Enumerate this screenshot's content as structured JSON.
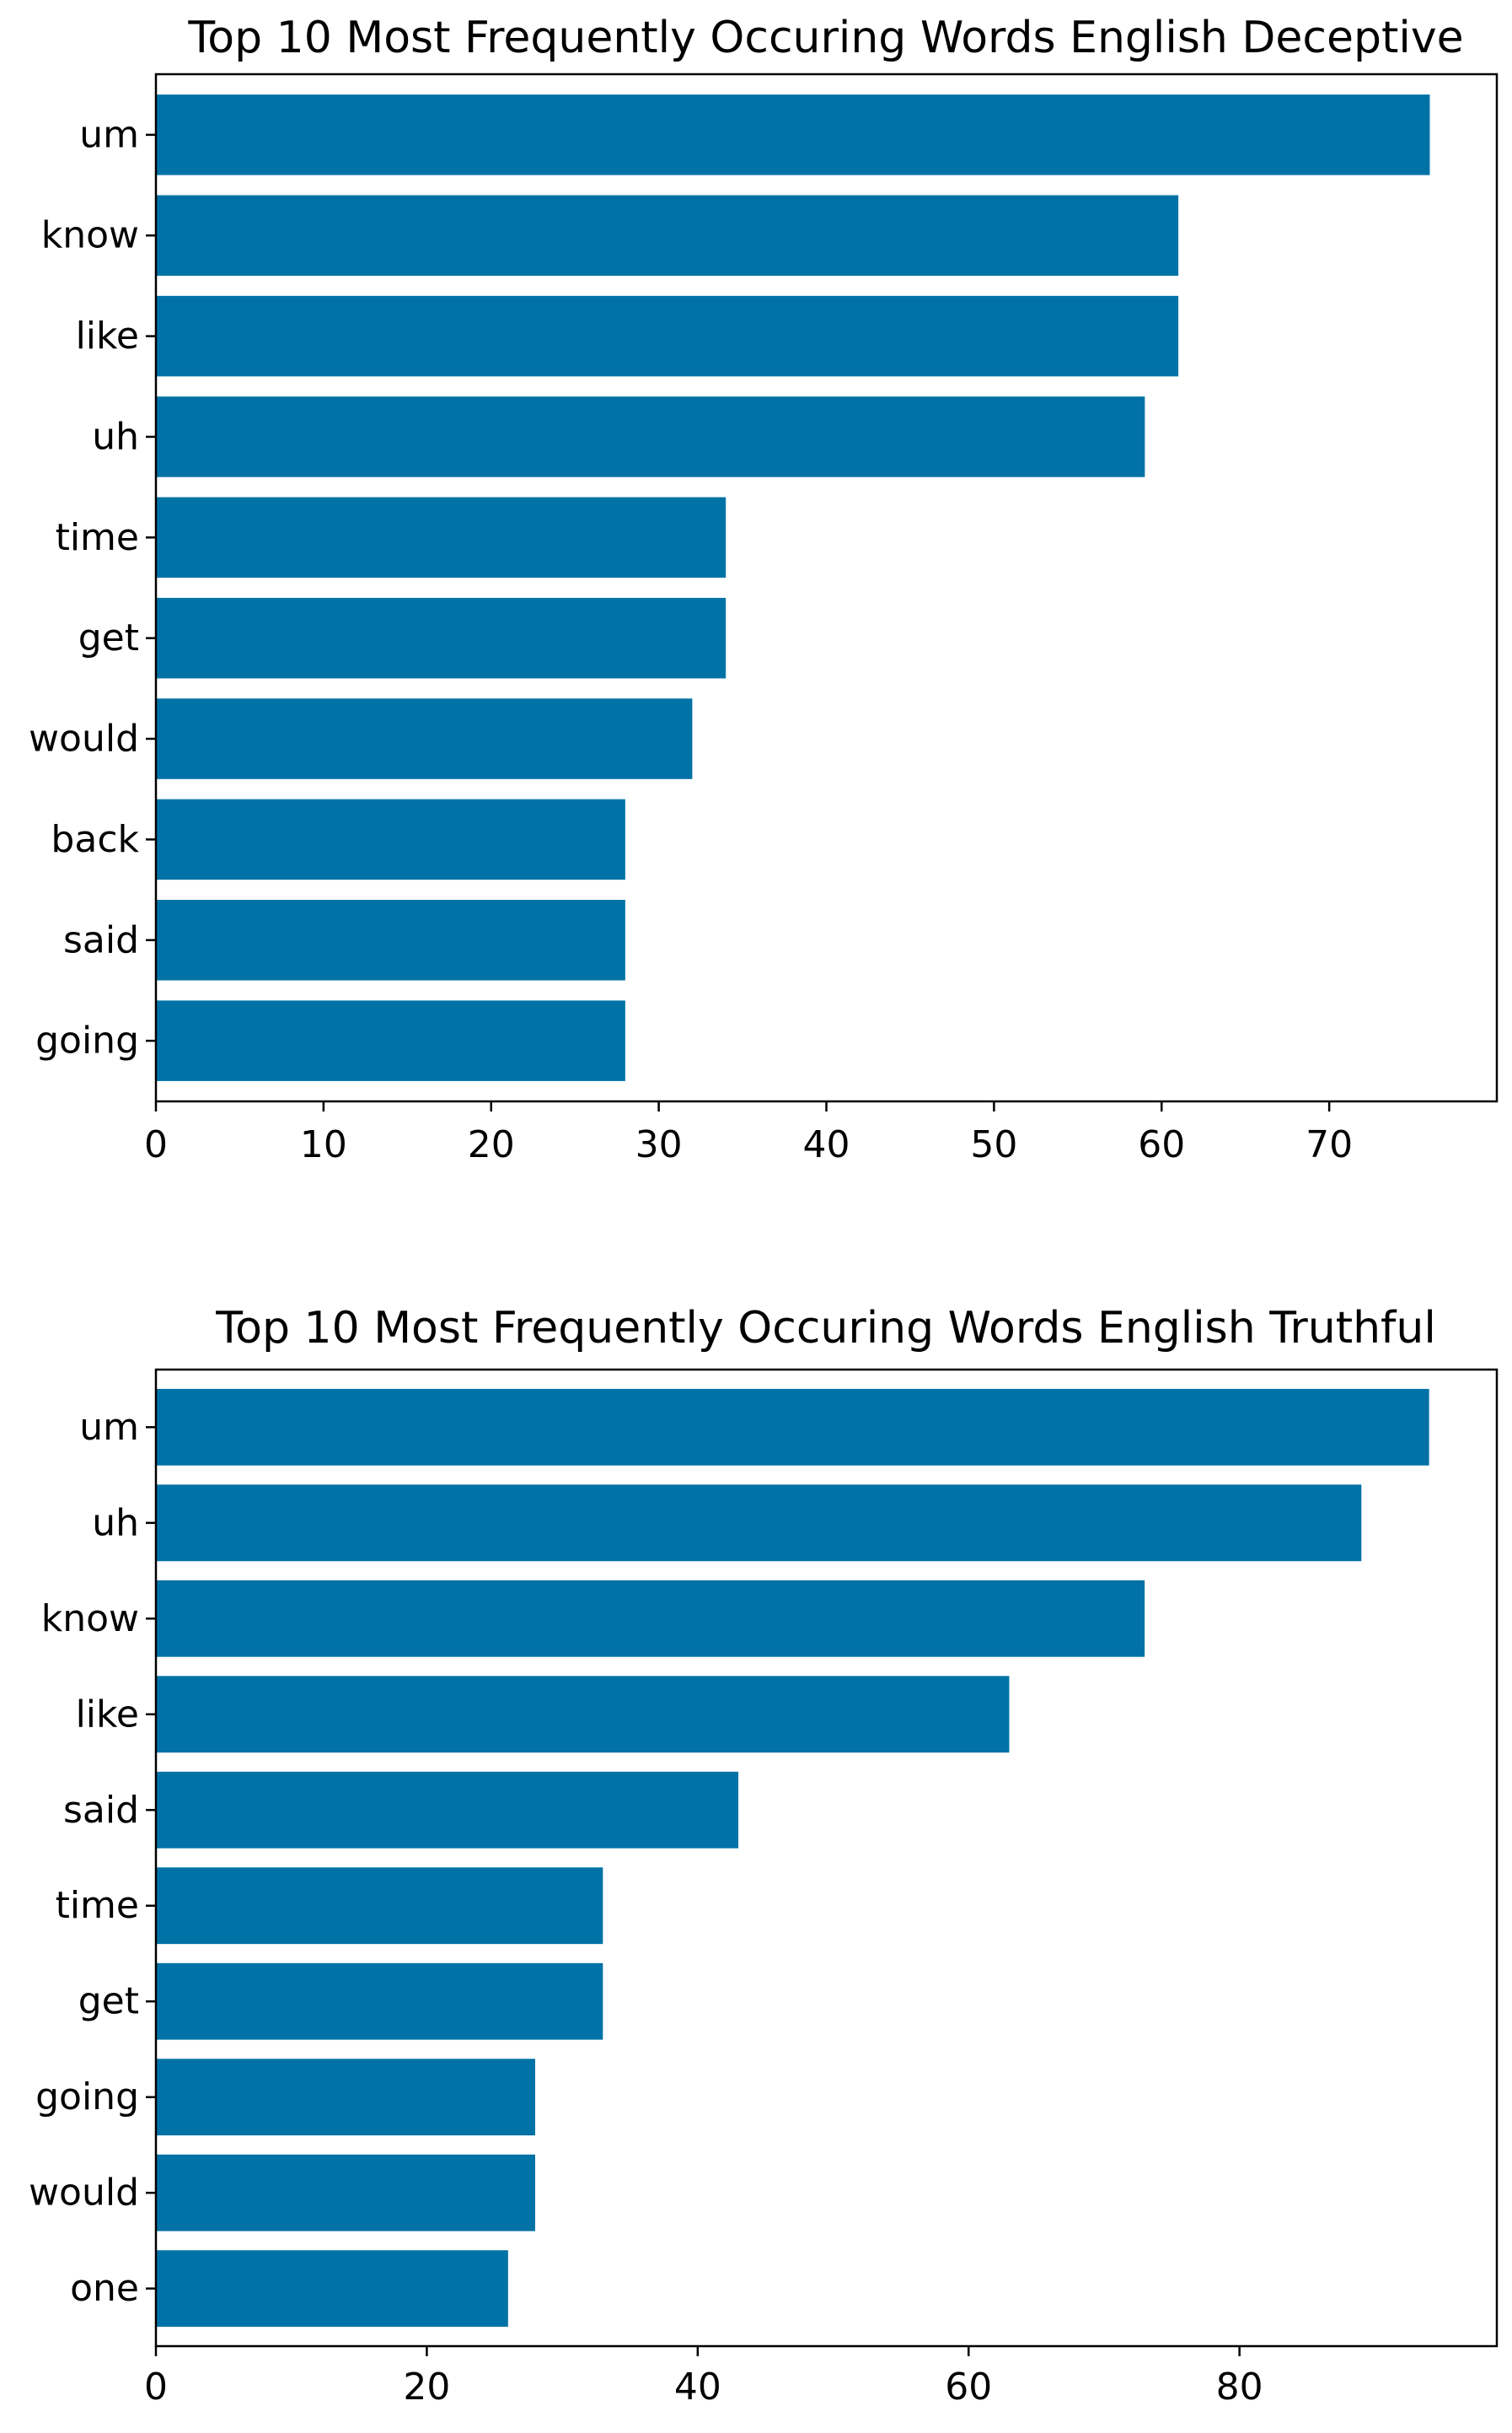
{
  "chart_data": [
    {
      "type": "bar",
      "orientation": "horizontal",
      "title": "Top 10 Most Frequently Occuring Words English Deceptive",
      "categories": [
        "um",
        "know",
        "like",
        "uh",
        "time",
        "get",
        "would",
        "back",
        "said",
        "going"
      ],
      "values": [
        76,
        61,
        61,
        59,
        34,
        34,
        32,
        28,
        28,
        28
      ],
      "xticks": [
        0,
        10,
        20,
        30,
        40,
        50,
        60,
        70
      ],
      "xlim": [
        0,
        80
      ],
      "xlabel": "",
      "ylabel": "",
      "grid": false,
      "bar_color": "#0072a6"
    },
    {
      "type": "bar",
      "orientation": "horizontal",
      "title": "Top 10 Most Frequently Occuring Words English Truthful",
      "categories": [
        "um",
        "uh",
        "know",
        "like",
        "said",
        "time",
        "get",
        "going",
        "would",
        "one"
      ],
      "values": [
        94,
        89,
        73,
        63,
        43,
        33,
        33,
        28,
        28,
        26
      ],
      "xticks": [
        0,
        20,
        40,
        60,
        80
      ],
      "xlim": [
        0,
        99
      ],
      "xlabel": "",
      "ylabel": "",
      "grid": false,
      "bar_color": "#0072a6"
    }
  ]
}
